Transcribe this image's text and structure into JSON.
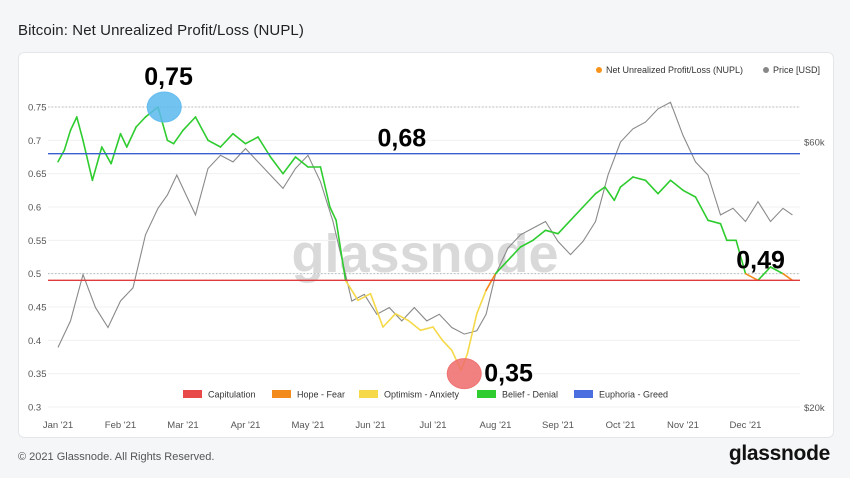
{
  "page": {
    "title": "Bitcoin: Net Unrealized Profit/Loss (NUPL)",
    "copyright": "© 2021 Glassnode. All Rights Reserved.",
    "brand": "glassnode",
    "watermark": "glassnode"
  },
  "chart_data": {
    "type": "line",
    "x_labels": [
      "Jan '21",
      "Feb '21",
      "Mar '21",
      "Apr '21",
      "May '21",
      "Jun '21",
      "Jul '21",
      "Aug '21",
      "Sep '21",
      "Oct '21",
      "Nov '21",
      "Dec '21"
    ],
    "left_ticks": [
      "0.75",
      "0.7",
      "0.65",
      "0.6",
      "0.55",
      "0.5",
      "0.45",
      "0.4",
      "0.35",
      "0.3"
    ],
    "right_ticks": [
      "$60k",
      "$20k"
    ],
    "ylim": [
      0.3,
      0.75
    ],
    "series_legend": [
      {
        "name": "Net Unrealized Profit/Loss (NUPL)",
        "color": "#f7931a"
      },
      {
        "name": "Price [USD]",
        "color": "#888888"
      }
    ],
    "zone_legend": [
      {
        "name": "Capitulation",
        "color": "#e84a4a"
      },
      {
        "name": "Hope - Fear",
        "color": "#f28b1c"
      },
      {
        "name": "Optimism - Anxiety",
        "color": "#f5d949"
      },
      {
        "name": "Belief - Denial",
        "color": "#2ecc2e"
      },
      {
        "name": "Euphoria - Greed",
        "color": "#4a6ee0"
      }
    ],
    "nupl": {
      "x": [
        0,
        0.1,
        0.2,
        0.3,
        0.4,
        0.55,
        0.7,
        0.85,
        1,
        1.1,
        1.25,
        1.4,
        1.6,
        1.75,
        1.85,
        2,
        2.2,
        2.4,
        2.6,
        2.8,
        3,
        3.2,
        3.4,
        3.6,
        3.8,
        4,
        4.2,
        4.35,
        4.45,
        4.6,
        4.8,
        5,
        5.2,
        5.4,
        5.6,
        5.8,
        6,
        6.15,
        6.3,
        6.45,
        6.55,
        6.7,
        6.85,
        7,
        7.2,
        7.4,
        7.6,
        7.8,
        8,
        8.2,
        8.4,
        8.6,
        8.75,
        8.9,
        9,
        9.2,
        9.4,
        9.6,
        9.8,
        10,
        10.2,
        10.4,
        10.6,
        10.7,
        10.85,
        11,
        11.2,
        11.4,
        11.6,
        11.75
      ],
      "y": [
        0.668,
        0.685,
        0.715,
        0.735,
        0.7,
        0.64,
        0.69,
        0.665,
        0.71,
        0.69,
        0.72,
        0.735,
        0.75,
        0.7,
        0.695,
        0.715,
        0.735,
        0.7,
        0.69,
        0.71,
        0.695,
        0.705,
        0.675,
        0.65,
        0.675,
        0.66,
        0.66,
        0.6,
        0.58,
        0.49,
        0.46,
        0.47,
        0.42,
        0.44,
        0.43,
        0.415,
        0.42,
        0.4,
        0.385,
        0.355,
        0.38,
        0.44,
        0.475,
        0.5,
        0.52,
        0.54,
        0.55,
        0.565,
        0.56,
        0.58,
        0.6,
        0.62,
        0.63,
        0.61,
        0.63,
        0.645,
        0.64,
        0.62,
        0.64,
        0.625,
        0.615,
        0.58,
        0.575,
        0.55,
        0.55,
        0.5,
        0.49,
        0.51,
        0.5,
        0.49
      ]
    },
    "price": {
      "x": [
        0,
        0.2,
        0.4,
        0.6,
        0.8,
        1,
        1.2,
        1.4,
        1.6,
        1.75,
        1.9,
        2.05,
        2.2,
        2.4,
        2.6,
        2.8,
        3,
        3.2,
        3.4,
        3.6,
        3.8,
        4,
        4.2,
        4.4,
        4.55,
        4.7,
        4.9,
        5.1,
        5.3,
        5.5,
        5.7,
        5.9,
        6.1,
        6.3,
        6.5,
        6.7,
        6.85,
        7,
        7.2,
        7.4,
        7.6,
        7.8,
        8,
        8.2,
        8.4,
        8.6,
        8.8,
        9,
        9.2,
        9.4,
        9.6,
        9.8,
        10,
        10.2,
        10.4,
        10.6,
        10.8,
        11,
        11.2,
        11.4,
        11.6,
        11.75
      ],
      "y": [
        29000,
        33000,
        40000,
        35000,
        32000,
        36000,
        38000,
        46000,
        50000,
        52000,
        55000,
        52000,
        49000,
        56000,
        58000,
        57000,
        59000,
        57000,
        55000,
        53000,
        56000,
        58000,
        54000,
        48000,
        42000,
        36000,
        37000,
        34000,
        35000,
        33000,
        35000,
        33000,
        34000,
        32000,
        31000,
        31500,
        34000,
        40000,
        44000,
        46000,
        47000,
        48000,
        45000,
        43000,
        45000,
        48000,
        55000,
        60000,
        62000,
        63000,
        65000,
        66000,
        61000,
        57000,
        55000,
        49000,
        50000,
        48000,
        51000,
        48000,
        50000,
        49000
      ]
    },
    "reference_lines": [
      0.68,
      0.49
    ],
    "annotations": [
      {
        "text": "0,75",
        "x": 1.7,
        "y": 0.75,
        "bubble": "#5bb8ef"
      },
      {
        "text": "0,68",
        "x": 4.6,
        "y": 0.68
      },
      {
        "text": "0,35",
        "x": 6.5,
        "y": 0.35,
        "bubble": "#ee6b6b"
      },
      {
        "text": "0,49",
        "x": 10.5,
        "y": 0.49
      }
    ]
  }
}
